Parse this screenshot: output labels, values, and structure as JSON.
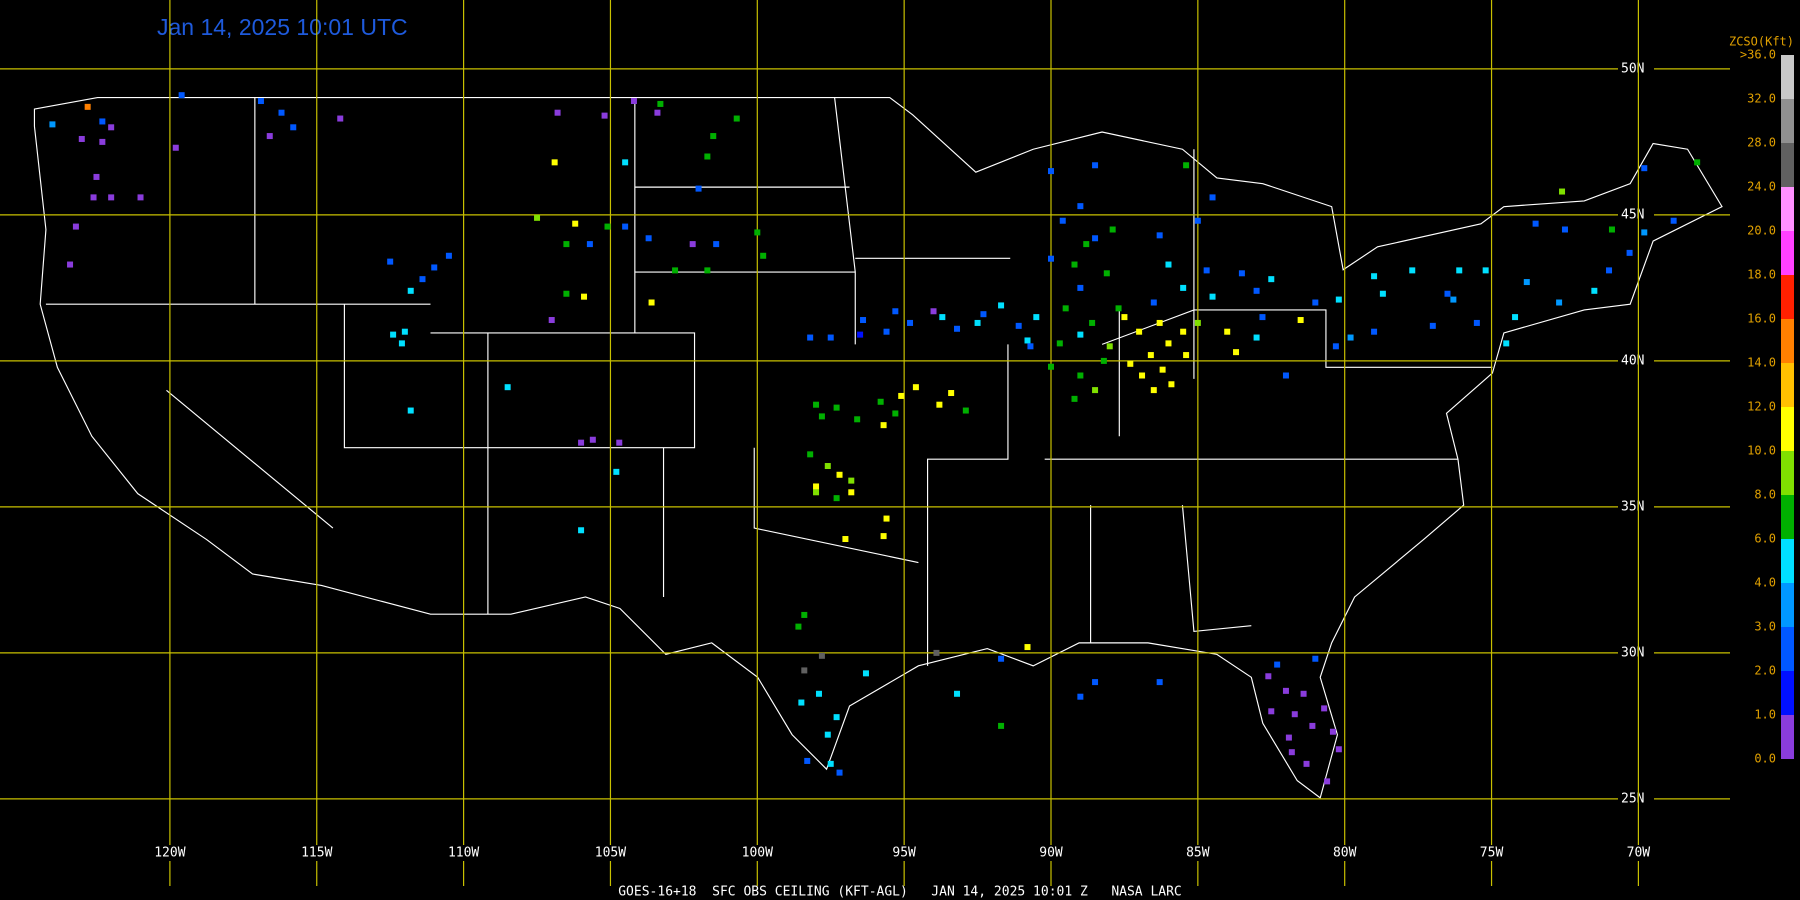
{
  "title": "Jan 14, 2025 10:01 UTC",
  "footer": "GOES-16+18  SFC OBS CEILING (KFT-AGL)   JAN 14, 2025 10:01 Z   NASA LARC",
  "lat_lines": [
    {
      "value": 50,
      "label": "50N"
    },
    {
      "value": 45,
      "label": "45N"
    },
    {
      "value": 40,
      "label": "40N"
    },
    {
      "value": 35,
      "label": "35N"
    },
    {
      "value": 30,
      "label": "30N"
    },
    {
      "value": 25,
      "label": "25N"
    }
  ],
  "lon_lines": [
    {
      "value": -120,
      "label": "120W"
    },
    {
      "value": -115,
      "label": "115W"
    },
    {
      "value": -110,
      "label": "110W"
    },
    {
      "value": -105,
      "label": "105W"
    },
    {
      "value": -100,
      "label": "100W"
    },
    {
      "value": -95,
      "label": "95W"
    },
    {
      "value": -90,
      "label": "90W"
    },
    {
      "value": -85,
      "label": "85W"
    },
    {
      "value": -80,
      "label": "80W"
    },
    {
      "value": -75,
      "label": "75W"
    },
    {
      "value": -70,
      "label": "70W"
    }
  ],
  "colorbar": {
    "title": "ZCSO(Kft)",
    "ticks": [
      {
        "value": 0,
        "label": "0.0"
      },
      {
        "value": 1,
        "label": "1.0"
      },
      {
        "value": 2,
        "label": "2.0"
      },
      {
        "value": 3,
        "label": "3.0"
      },
      {
        "value": 4,
        "label": "4.0"
      },
      {
        "value": 6,
        "label": "6.0"
      },
      {
        "value": 8,
        "label": "8.0"
      },
      {
        "value": 10,
        "label": "10.0"
      },
      {
        "value": 12,
        "label": "12.0"
      },
      {
        "value": 14,
        "label": "14.0"
      },
      {
        "value": 16,
        "label": "16.0"
      },
      {
        "value": 18,
        "label": "18.0"
      },
      {
        "value": 20,
        "label": "20.0"
      },
      {
        "value": 24,
        "label": "24.0"
      },
      {
        "value": 28,
        "label": "28.0"
      },
      {
        "value": 32,
        "label": "32.0"
      },
      {
        "value": 36,
        "label": ">36.0"
      }
    ],
    "colors": [
      "#8a3cdc",
      "#0010ff",
      "#0058ff",
      "#0098ff",
      "#00e0ff",
      "#00b000",
      "#80e000",
      "#ffff00",
      "#ffc000",
      "#ff8000",
      "#ff2000",
      "#ff40ff",
      "#ff90ff",
      "#606060",
      "#909090",
      "#c8c8c8"
    ]
  },
  "stations": [
    {
      "lon": -123.0,
      "lat": 47.6,
      "value": 0.5
    },
    {
      "lon": -122.3,
      "lat": 47.5,
      "value": 0.5
    },
    {
      "lon": -122.5,
      "lat": 46.3,
      "value": 0.5
    },
    {
      "lon": -122.6,
      "lat": 45.6,
      "value": 0.5
    },
    {
      "lon": -123.2,
      "lat": 44.6,
      "value": 0.5
    },
    {
      "lon": -123.4,
      "lat": 43.3,
      "value": 0.5
    },
    {
      "lon": -122.0,
      "lat": 45.6,
      "value": 0.5
    },
    {
      "lon": -121.0,
      "lat": 45.6,
      "value": 0.5
    },
    {
      "lon": -124.0,
      "lat": 48.1,
      "value": 3.5
    },
    {
      "lon": -122.8,
      "lat": 48.7,
      "value": 15
    },
    {
      "lon": -122.3,
      "lat": 48.2,
      "value": 2.5
    },
    {
      "lon": -122.0,
      "lat": 48.0,
      "value": 0.5
    },
    {
      "lon": -116.6,
      "lat": 47.7,
      "value": 0.5
    },
    {
      "lon": -115.8,
      "lat": 48.0,
      "value": 2.5
    },
    {
      "lon": -116.2,
      "lat": 48.5,
      "value": 2.5
    },
    {
      "lon": -119.8,
      "lat": 47.3,
      "value": 0.5
    },
    {
      "lon": -114.2,
      "lat": 48.3,
      "value": 0.5
    },
    {
      "lon": -116.9,
      "lat": 48.9,
      "value": 2.5
    },
    {
      "lon": -119.6,
      "lat": 49.1,
      "value": 2.5
    },
    {
      "lon": -105.2,
      "lat": 48.4,
      "value": 0.5
    },
    {
      "lon": -106.8,
      "lat": 48.5,
      "value": 0.5
    },
    {
      "lon": -103.4,
      "lat": 48.5,
      "value": 0.5
    },
    {
      "lon": -104.2,
      "lat": 48.9,
      "value": 0.5
    },
    {
      "lon": -100.7,
      "lat": 48.3,
      "value": 7
    },
    {
      "lon": -101.5,
      "lat": 47.7,
      "value": 7
    },
    {
      "lon": -103.3,
      "lat": 48.8,
      "value": 7
    },
    {
      "lon": -101.7,
      "lat": 47.0,
      "value": 7
    },
    {
      "lon": -102.0,
      "lat": 45.9,
      "value": 2.5
    },
    {
      "lon": -104.5,
      "lat": 46.8,
      "value": 5
    },
    {
      "lon": -106.9,
      "lat": 46.8,
      "value": 11
    },
    {
      "lon": -107.5,
      "lat": 44.9,
      "value": 9
    },
    {
      "lon": -106.2,
      "lat": 44.7,
      "value": 11
    },
    {
      "lon": -105.1,
      "lat": 44.6,
      "value": 7
    },
    {
      "lon": -105.7,
      "lat": 44.0,
      "value": 2.5
    },
    {
      "lon": -106.5,
      "lat": 44.0,
      "value": 7
    },
    {
      "lon": -104.5,
      "lat": 44.6,
      "value": 2.5
    },
    {
      "lon": -103.7,
      "lat": 44.2,
      "value": 2.5
    },
    {
      "lon": -102.2,
      "lat": 44.0,
      "value": 0.5
    },
    {
      "lon": -101.4,
      "lat": 44.0,
      "value": 2.5
    },
    {
      "lon": -100.0,
      "lat": 44.4,
      "value": 7
    },
    {
      "lon": -99.8,
      "lat": 43.6,
      "value": 7
    },
    {
      "lon": -101.7,
      "lat": 43.1,
      "value": 7
    },
    {
      "lon": -102.8,
      "lat": 43.1,
      "value": 7
    },
    {
      "lon": -103.6,
      "lat": 42.0,
      "value": 11
    },
    {
      "lon": -105.9,
      "lat": 42.2,
      "value": 11
    },
    {
      "lon": -106.5,
      "lat": 42.3,
      "value": 7
    },
    {
      "lon": -107.0,
      "lat": 41.4,
      "value": 0.5
    },
    {
      "lon": -110.5,
      "lat": 43.6,
      "value": 2.5
    },
    {
      "lon": -111.0,
      "lat": 43.2,
      "value": 2.5
    },
    {
      "lon": -111.4,
      "lat": 42.8,
      "value": 2.5
    },
    {
      "lon": -112.5,
      "lat": 43.4,
      "value": 2.5
    },
    {
      "lon": -111.8,
      "lat": 42.4,
      "value": 5
    },
    {
      "lon": -112.0,
      "lat": 41.0,
      "value": 5
    },
    {
      "lon": -112.4,
      "lat": 40.9,
      "value": 5
    },
    {
      "lon": -112.1,
      "lat": 40.6,
      "value": 5
    },
    {
      "lon": -108.5,
      "lat": 39.1,
      "value": 5
    },
    {
      "lon": -111.8,
      "lat": 38.3,
      "value": 5
    },
    {
      "lon": -104.7,
      "lat": 37.2,
      "value": 0.5
    },
    {
      "lon": -105.6,
      "lat": 37.3,
      "value": 0.5
    },
    {
      "lon": -106.0,
      "lat": 37.2,
      "value": 0.5
    },
    {
      "lon": -104.8,
      "lat": 36.2,
      "value": 5
    },
    {
      "lon": -106.0,
      "lat": 34.2,
      "value": 5
    },
    {
      "lon": -98.2,
      "lat": 40.8,
      "value": 2.5
    },
    {
      "lon": -97.5,
      "lat": 40.8,
      "value": 2.5
    },
    {
      "lon": -96.5,
      "lat": 40.9,
      "value": 1.5
    },
    {
      "lon": -95.6,
      "lat": 41.0,
      "value": 2.5
    },
    {
      "lon": -94.8,
      "lat": 41.3,
      "value": 2.5
    },
    {
      "lon": -93.7,
      "lat": 41.5,
      "value": 5
    },
    {
      "lon": -93.2,
      "lat": 41.1,
      "value": 2.5
    },
    {
      "lon": -92.3,
      "lat": 41.6,
      "value": 2.5
    },
    {
      "lon": -91.7,
      "lat": 41.9,
      "value": 5
    },
    {
      "lon": -91.1,
      "lat": 41.2,
      "value": 2.5
    },
    {
      "lon": -90.5,
      "lat": 41.5,
      "value": 5
    },
    {
      "lon": -90.8,
      "lat": 40.7,
      "value": 5
    },
    {
      "lon": -94.0,
      "lat": 41.7,
      "value": 0.5
    },
    {
      "lon": -92.5,
      "lat": 41.3,
      "value": 5
    },
    {
      "lon": -95.3,
      "lat": 41.7,
      "value": 2.5
    },
    {
      "lon": -96.4,
      "lat": 41.4,
      "value": 2.5
    },
    {
      "lon": -89.6,
      "lat": 44.8,
      "value": 2.5
    },
    {
      "lon": -88.5,
      "lat": 44.2,
      "value": 2.5
    },
    {
      "lon": -87.9,
      "lat": 44.5,
      "value": 7
    },
    {
      "lon": -89.0,
      "lat": 45.3,
      "value": 2.5
    },
    {
      "lon": -90.0,
      "lat": 46.5,
      "value": 2.5
    },
    {
      "lon": -88.5,
      "lat": 46.7,
      "value": 2.5
    },
    {
      "lon": -85.4,
      "lat": 46.7,
      "value": 7
    },
    {
      "lon": -84.5,
      "lat": 45.6,
      "value": 2.5
    },
    {
      "lon": -85.0,
      "lat": 44.8,
      "value": 2.5
    },
    {
      "lon": -86.3,
      "lat": 44.3,
      "value": 2.5
    },
    {
      "lon": -86.0,
      "lat": 43.3,
      "value": 5
    },
    {
      "lon": -84.7,
      "lat": 43.1,
      "value": 2.5
    },
    {
      "lon": -83.5,
      "lat": 43.0,
      "value": 2.5
    },
    {
      "lon": -83.0,
      "lat": 42.4,
      "value": 2.5
    },
    {
      "lon": -84.5,
      "lat": 42.2,
      "value": 5
    },
    {
      "lon": -82.5,
      "lat": 42.8,
      "value": 5
    },
    {
      "lon": -85.5,
      "lat": 42.5,
      "value": 5
    },
    {
      "lon": -86.5,
      "lat": 42.0,
      "value": 2.5
    },
    {
      "lon": -89.2,
      "lat": 43.3,
      "value": 7
    },
    {
      "lon": -88.1,
      "lat": 43.0,
      "value": 7
    },
    {
      "lon": -89.0,
      "lat": 42.5,
      "value": 2.5
    },
    {
      "lon": -90.0,
      "lat": 43.5,
      "value": 2.5
    },
    {
      "lon": -88.8,
      "lat": 44.0,
      "value": 7
    },
    {
      "lon": -89.5,
      "lat": 41.8,
      "value": 7
    },
    {
      "lon": -88.6,
      "lat": 41.3,
      "value": 7
    },
    {
      "lon": -89.7,
      "lat": 40.6,
      "value": 7
    },
    {
      "lon": -88.2,
      "lat": 40.0,
      "value": 7
    },
    {
      "lon": -89.0,
      "lat": 39.5,
      "value": 7
    },
    {
      "lon": -90.0,
      "lat": 39.8,
      "value": 7
    },
    {
      "lon": -88.5,
      "lat": 39.0,
      "value": 9
    },
    {
      "lon": -89.2,
      "lat": 38.7,
      "value": 7
    },
    {
      "lon": -87.7,
      "lat": 41.8,
      "value": 7
    },
    {
      "lon": -88.0,
      "lat": 40.5,
      "value": 9
    },
    {
      "lon": -90.7,
      "lat": 40.5,
      "value": 2.5
    },
    {
      "lon": -89.0,
      "lat": 40.9,
      "value": 5
    },
    {
      "lon": -87.5,
      "lat": 41.5,
      "value": 11
    },
    {
      "lon": -87.0,
      "lat": 41.0,
      "value": 11
    },
    {
      "lon": -86.3,
      "lat": 41.3,
      "value": 11
    },
    {
      "lon": -86.0,
      "lat": 40.6,
      "value": 11
    },
    {
      "lon": -86.6,
      "lat": 40.2,
      "value": 11
    },
    {
      "lon": -85.4,
      "lat": 40.2,
      "value": 11
    },
    {
      "lon": -86.2,
      "lat": 39.7,
      "value": 11
    },
    {
      "lon": -85.5,
      "lat": 41.0,
      "value": 11
    },
    {
      "lon": -86.9,
      "lat": 39.5,
      "value": 11
    },
    {
      "lon": -87.3,
      "lat": 39.9,
      "value": 11
    },
    {
      "lon": -85.9,
      "lat": 39.2,
      "value": 11
    },
    {
      "lon": -86.5,
      "lat": 39.0,
      "value": 11
    },
    {
      "lon": -85.0,
      "lat": 41.3,
      "value": 9
    },
    {
      "lon": -84.0,
      "lat": 41.0,
      "value": 11
    },
    {
      "lon": -83.7,
      "lat": 40.3,
      "value": 11
    },
    {
      "lon": -83.0,
      "lat": 40.8,
      "value": 5
    },
    {
      "lon": -81.5,
      "lat": 41.4,
      "value": 11
    },
    {
      "lon": -82.8,
      "lat": 41.5,
      "value": 2.5
    },
    {
      "lon": -81.0,
      "lat": 42.0,
      "value": 2.5
    },
    {
      "lon": -80.2,
      "lat": 42.1,
      "value": 5
    },
    {
      "lon": -79.0,
      "lat": 42.9,
      "value": 5
    },
    {
      "lon": -77.7,
      "lat": 43.1,
      "value": 5
    },
    {
      "lon": -76.1,
      "lat": 43.1,
      "value": 5
    },
    {
      "lon": -75.2,
      "lat": 43.1,
      "value": 5
    },
    {
      "lon": -73.8,
      "lat": 42.7,
      "value": 3.5
    },
    {
      "lon": -74.2,
      "lat": 41.5,
      "value": 5
    },
    {
      "lon": -75.5,
      "lat": 41.3,
      "value": 2.5
    },
    {
      "lon": -77.0,
      "lat": 41.2,
      "value": 2.5
    },
    {
      "lon": -79.0,
      "lat": 41.0,
      "value": 2.5
    },
    {
      "lon": -80.3,
      "lat": 40.5,
      "value": 2.5
    },
    {
      "lon": -82.0,
      "lat": 39.5,
      "value": 2.5
    },
    {
      "lon": -76.5,
      "lat": 42.3,
      "value": 2.5
    },
    {
      "lon": -72.7,
      "lat": 42.0,
      "value": 3.5
    },
    {
      "lon": -71.5,
      "lat": 42.4,
      "value": 5
    },
    {
      "lon": -71.0,
      "lat": 43.1,
      "value": 2.5
    },
    {
      "lon": -70.3,
      "lat": 43.7,
      "value": 2.5
    },
    {
      "lon": -69.8,
      "lat": 44.4,
      "value": 3.5
    },
    {
      "lon": -68.8,
      "lat": 44.8,
      "value": 2.5
    },
    {
      "lon": -70.9,
      "lat": 44.5,
      "value": 7
    },
    {
      "lon": -72.5,
      "lat": 44.5,
      "value": 2.5
    },
    {
      "lon": -73.5,
      "lat": 44.7,
      "value": 2.5
    },
    {
      "lon": -72.6,
      "lat": 45.8,
      "value": 9
    },
    {
      "lon": -69.8,
      "lat": 46.6,
      "value": 2.5
    },
    {
      "lon": -68.0,
      "lat": 46.8,
      "value": 7
    },
    {
      "lon": -74.5,
      "lat": 40.6,
      "value": 5
    },
    {
      "lon": -79.8,
      "lat": 40.8,
      "value": 3.5
    },
    {
      "lon": -76.3,
      "lat": 42.1,
      "value": 3.5
    },
    {
      "lon": -78.7,
      "lat": 42.3,
      "value": 5
    },
    {
      "lon": -97.8,
      "lat": 38.1,
      "value": 7
    },
    {
      "lon": -97.3,
      "lat": 38.4,
      "value": 7
    },
    {
      "lon": -96.6,
      "lat": 38.0,
      "value": 7
    },
    {
      "lon": -95.8,
      "lat": 38.6,
      "value": 7
    },
    {
      "lon": -95.1,
      "lat": 38.8,
      "value": 11
    },
    {
      "lon": -94.6,
      "lat": 39.1,
      "value": 11
    },
    {
      "lon": -93.8,
      "lat": 38.5,
      "value": 11
    },
    {
      "lon": -93.4,
      "lat": 38.9,
      "value": 11
    },
    {
      "lon": -92.9,
      "lat": 38.3,
      "value": 7
    },
    {
      "lon": -98.2,
      "lat": 36.8,
      "value": 7
    },
    {
      "lon": -97.6,
      "lat": 36.4,
      "value": 9
    },
    {
      "lon": -97.2,
      "lat": 36.1,
      "value": 11
    },
    {
      "lon": -96.8,
      "lat": 35.9,
      "value": 9
    },
    {
      "lon": -98.0,
      "lat": 35.7,
      "value": 11
    },
    {
      "lon": -97.3,
      "lat": 35.3,
      "value": 7
    },
    {
      "lon": -96.8,
      "lat": 35.5,
      "value": 11
    },
    {
      "lon": -98.0,
      "lat": 35.5,
      "value": 9
    },
    {
      "lon": -95.7,
      "lat": 37.8,
      "value": 11
    },
    {
      "lon": -95.3,
      "lat": 38.2,
      "value": 7
    },
    {
      "lon": -97.0,
      "lat": 33.9,
      "value": 11
    },
    {
      "lon": -95.7,
      "lat": 34.0,
      "value": 11
    },
    {
      "lon": -95.6,
      "lat": 34.6,
      "value": 11
    },
    {
      "lon": -98.0,
      "lat": 38.5,
      "value": 7
    },
    {
      "lon": -98.5,
      "lat": 28.3,
      "value": 5
    },
    {
      "lon": -97.9,
      "lat": 28.6,
      "value": 5
    },
    {
      "lon": -97.3,
      "lat": 27.8,
      "value": 5
    },
    {
      "lon": -97.6,
      "lat": 27.2,
      "value": 5
    },
    {
      "lon": -97.5,
      "lat": 26.2,
      "value": 5
    },
    {
      "lon": -97.2,
      "lat": 25.9,
      "value": 2.5
    },
    {
      "lon": -98.3,
      "lat": 26.3,
      "value": 2.5
    },
    {
      "lon": -96.3,
      "lat": 29.3,
      "value": 5
    },
    {
      "lon": -93.2,
      "lat": 28.6,
      "value": 5
    },
    {
      "lon": -91.7,
      "lat": 29.8,
      "value": 2.5
    },
    {
      "lon": -90.8,
      "lat": 30.2,
      "value": 11
    },
    {
      "lon": -89.0,
      "lat": 28.5,
      "value": 2.5
    },
    {
      "lon": -88.5,
      "lat": 29.0,
      "value": 2.5
    },
    {
      "lon": -86.3,
      "lat": 29.0,
      "value": 2.5
    },
    {
      "lon": -91.7,
      "lat": 27.5,
      "value": 7
    },
    {
      "lon": -93.9,
      "lat": 30.0,
      "value": 26
    },
    {
      "lon": -97.8,
      "lat": 29.9,
      "value": 26
    },
    {
      "lon": -98.4,
      "lat": 29.4,
      "value": 26
    },
    {
      "lon": -98.6,
      "lat": 30.9,
      "value": 7
    },
    {
      "lon": -98.4,
      "lat": 31.3,
      "value": 7
    },
    {
      "lon": -82.6,
      "lat": 29.2,
      "value": 0.5
    },
    {
      "lon": -82.0,
      "lat": 28.7,
      "value": 0.5
    },
    {
      "lon": -81.4,
      "lat": 28.6,
      "value": 0.5
    },
    {
      "lon": -82.5,
      "lat": 28.0,
      "value": 0.5
    },
    {
      "lon": -81.7,
      "lat": 27.9,
      "value": 0.5
    },
    {
      "lon": -80.7,
      "lat": 28.1,
      "value": 0.5
    },
    {
      "lon": -80.4,
      "lat": 27.3,
      "value": 0.5
    },
    {
      "lon": -80.2,
      "lat": 26.7,
      "value": 0.5
    },
    {
      "lon": -81.8,
      "lat": 26.6,
      "value": 0.5
    },
    {
      "lon": -81.3,
      "lat": 26.2,
      "value": 0.5
    },
    {
      "lon": -80.6,
      "lat": 25.6,
      "value": 0.5
    },
    {
      "lon": -81.0,
      "lat": 29.8,
      "value": 2.5
    },
    {
      "lon": -82.3,
      "lat": 29.6,
      "value": 2.5
    },
    {
      "lon": -81.1,
      "lat": 27.5,
      "value": 0.5
    },
    {
      "lon": -81.9,
      "lat": 27.1,
      "value": 0.5
    }
  ]
}
